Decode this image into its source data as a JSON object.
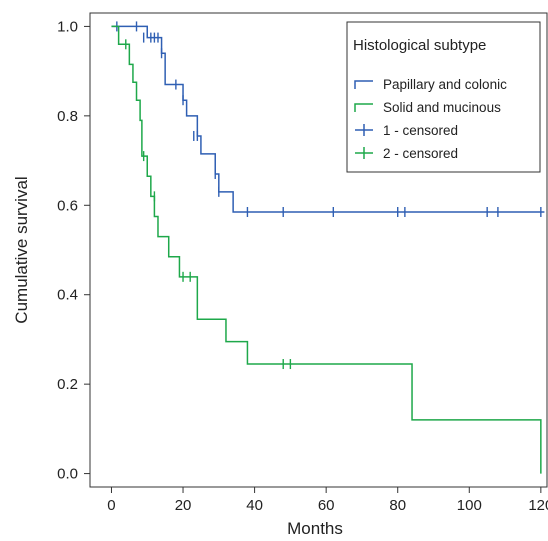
{
  "chart_data": {
    "type": "line",
    "title": "",
    "xlabel": "Months",
    "ylabel": "Cumulative survival",
    "xlim": [
      -6,
      122
    ],
    "ylim": [
      -0.03,
      1.03
    ],
    "xticks": [
      0,
      20,
      40,
      60,
      80,
      100,
      120
    ],
    "yticks": [
      0.0,
      0.2,
      0.4,
      0.6,
      0.8,
      1.0
    ],
    "xtick_labels": [
      "0",
      "20",
      "40",
      "60",
      "80",
      "100",
      "120"
    ],
    "ytick_labels": [
      "0.0",
      "0.2",
      "0.4",
      "0.6",
      "0.8",
      "1.0"
    ],
    "grid": false,
    "legend": {
      "title": "Histological subtype",
      "placement": "top-right",
      "entries": [
        "Papillary and colonic",
        "Solid and mucinous",
        "1 - censored",
        "2 - censored"
      ]
    },
    "series": [
      {
        "name": "Papillary and colonic",
        "color": "#2f5fb3",
        "steps": [
          [
            0,
            1.0
          ],
          [
            10,
            0.975
          ],
          [
            14,
            0.94
          ],
          [
            15,
            0.87
          ],
          [
            19,
            0.87
          ],
          [
            20,
            0.835
          ],
          [
            21,
            0.8
          ],
          [
            24,
            0.755
          ],
          [
            25,
            0.715
          ],
          [
            28,
            0.715
          ],
          [
            29,
            0.67
          ],
          [
            30,
            0.63
          ],
          [
            34,
            0.585
          ],
          [
            121,
            0.585
          ]
        ],
        "censored": [
          [
            1.5,
            1.0
          ],
          [
            7,
            1.0
          ],
          [
            9,
            0.975
          ],
          [
            11,
            0.975
          ],
          [
            12,
            0.975
          ],
          [
            13,
            0.975
          ],
          [
            14,
            0.94
          ],
          [
            18,
            0.87
          ],
          [
            20,
            0.835
          ],
          [
            23,
            0.755
          ],
          [
            24,
            0.755
          ],
          [
            29,
            0.67
          ],
          [
            30,
            0.63
          ],
          [
            38,
            0.585
          ],
          [
            48,
            0.585
          ],
          [
            62,
            0.585
          ],
          [
            80,
            0.585
          ],
          [
            82,
            0.585
          ],
          [
            105,
            0.585
          ],
          [
            108,
            0.585
          ],
          [
            120,
            0.585
          ]
        ]
      },
      {
        "name": "Solid and mucinous",
        "color": "#1ea84a",
        "steps": [
          [
            0,
            1.0
          ],
          [
            2,
            0.96
          ],
          [
            5,
            0.915
          ],
          [
            6,
            0.875
          ],
          [
            7,
            0.835
          ],
          [
            8,
            0.79
          ],
          [
            8.5,
            0.71
          ],
          [
            9,
            0.71
          ],
          [
            10,
            0.665
          ],
          [
            11,
            0.62
          ],
          [
            12,
            0.575
          ],
          [
            13,
            0.53
          ],
          [
            16,
            0.485
          ],
          [
            19,
            0.44
          ],
          [
            24,
            0.345
          ],
          [
            32,
            0.295
          ],
          [
            38,
            0.245
          ],
          [
            84,
            0.245
          ],
          [
            84,
            0.12
          ],
          [
            120,
            0.12
          ],
          [
            120,
            0.0
          ]
        ],
        "censored": [
          [
            4,
            0.96
          ],
          [
            9,
            0.71
          ],
          [
            12,
            0.62
          ],
          [
            20,
            0.44
          ],
          [
            22,
            0.44
          ],
          [
            48,
            0.245
          ],
          [
            50,
            0.245
          ]
        ]
      }
    ]
  }
}
